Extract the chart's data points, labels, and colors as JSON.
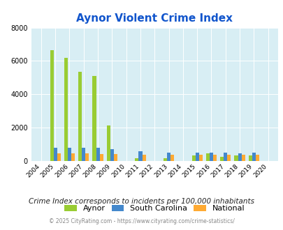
{
  "title": "Aynor Violent Crime Index",
  "subtitle": "Crime Index corresponds to incidents per 100,000 inhabitants",
  "footer": "© 2025 CityRating.com - https://www.cityrating.com/crime-statistics/",
  "years": [
    2004,
    2005,
    2006,
    2007,
    2008,
    2009,
    2010,
    2011,
    2012,
    2013,
    2014,
    2015,
    2016,
    2017,
    2018,
    2019,
    2020
  ],
  "aynor": [
    0,
    6650,
    6200,
    5350,
    5100,
    2150,
    0,
    150,
    0,
    150,
    0,
    350,
    450,
    250,
    350,
    350,
    0
  ],
  "south_carolina": [
    0,
    800,
    780,
    810,
    780,
    700,
    0,
    570,
    0,
    510,
    0,
    520,
    520,
    500,
    480,
    520,
    0
  ],
  "national": [
    0,
    460,
    440,
    450,
    420,
    400,
    0,
    380,
    0,
    370,
    0,
    370,
    390,
    380,
    370,
    370,
    0
  ],
  "bar_width": 0.25,
  "ylim": [
    0,
    8000
  ],
  "yticks": [
    0,
    2000,
    4000,
    6000,
    8000
  ],
  "color_aynor": "#99cc33",
  "color_sc": "#4488cc",
  "color_national": "#ffaa33",
  "bg_color": "#d8eef4",
  "title_color": "#1155cc",
  "subtitle_color": "#222222",
  "footer_color": "#888888",
  "legend_labels": [
    "Aynor",
    "South Carolina",
    "National"
  ]
}
